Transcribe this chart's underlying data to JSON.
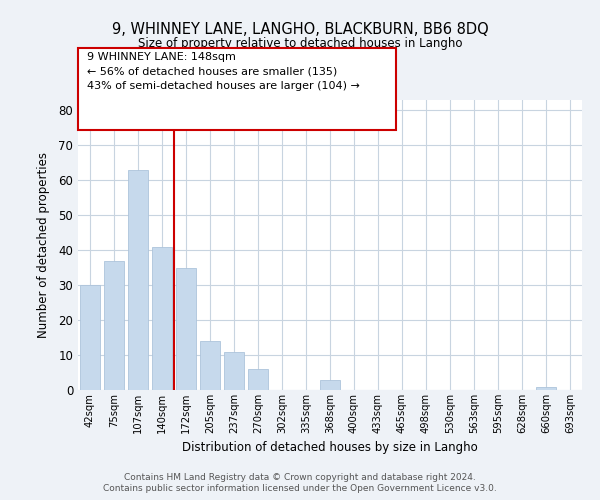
{
  "title": "9, WHINNEY LANE, LANGHO, BLACKBURN, BB6 8DQ",
  "subtitle": "Size of property relative to detached houses in Langho",
  "xlabel": "Distribution of detached houses by size in Langho",
  "ylabel": "Number of detached properties",
  "bar_labels": [
    "42sqm",
    "75sqm",
    "107sqm",
    "140sqm",
    "172sqm",
    "205sqm",
    "237sqm",
    "270sqm",
    "302sqm",
    "335sqm",
    "368sqm",
    "400sqm",
    "433sqm",
    "465sqm",
    "498sqm",
    "530sqm",
    "563sqm",
    "595sqm",
    "628sqm",
    "660sqm",
    "693sqm"
  ],
  "bar_values": [
    30,
    37,
    63,
    41,
    35,
    14,
    11,
    6,
    0,
    0,
    3,
    0,
    0,
    0,
    0,
    0,
    0,
    0,
    0,
    1,
    0
  ],
  "bar_color": "#c6d9ec",
  "bar_edge_color": "#adc4db",
  "vertical_line_x": 3,
  "vertical_line_color": "#cc0000",
  "ylim": [
    0,
    83
  ],
  "yticks": [
    0,
    10,
    20,
    30,
    40,
    50,
    60,
    70,
    80
  ],
  "ann_line1": "9 WHINNEY LANE: 148sqm",
  "ann_line2": "← 56% of detached houses are smaller (135)",
  "ann_line3": "43% of semi-detached houses are larger (104) →",
  "footer_line1": "Contains HM Land Registry data © Crown copyright and database right 2024.",
  "footer_line2": "Contains public sector information licensed under the Open Government Licence v3.0.",
  "background_color": "#eef2f7",
  "plot_bg_color": "#ffffff",
  "grid_color": "#c8d4e0"
}
